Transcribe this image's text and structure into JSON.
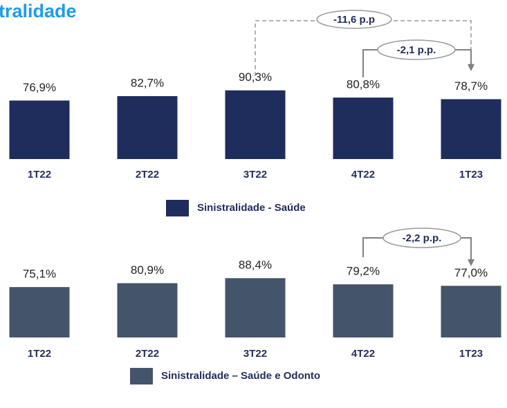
{
  "chart_data": [
    {
      "type": "bar",
      "title": "tralidade",
      "categories": [
        "1T22",
        "2T22",
        "3T22",
        "4T22",
        "1T23"
      ],
      "series": [
        {
          "name": "Sinistralidade - Saúde",
          "color": "#1f2d5c",
          "values": [
            76.9,
            82.7,
            90.3,
            80.8,
            78.7
          ],
          "value_labels": [
            "76,9%",
            "82,7%",
            "90,3%",
            "80,8%",
            "78,7%"
          ]
        }
      ],
      "annotations": [
        "-11,6 p.p",
        "-2,1 p.p."
      ]
    },
    {
      "type": "bar",
      "categories": [
        "1T22",
        "2T22",
        "3T22",
        "4T22",
        "1T23"
      ],
      "series": [
        {
          "name": "Sinistralidade – Saúde e Odonto",
          "color": "#44546a",
          "values": [
            75.1,
            80.9,
            88.4,
            79.2,
            77.0
          ],
          "value_labels": [
            "75,1%",
            "80,9%",
            "88,4%",
            "79,2%",
            "77,0%"
          ]
        }
      ],
      "annotations": [
        "-2,2 p.p."
      ]
    }
  ]
}
